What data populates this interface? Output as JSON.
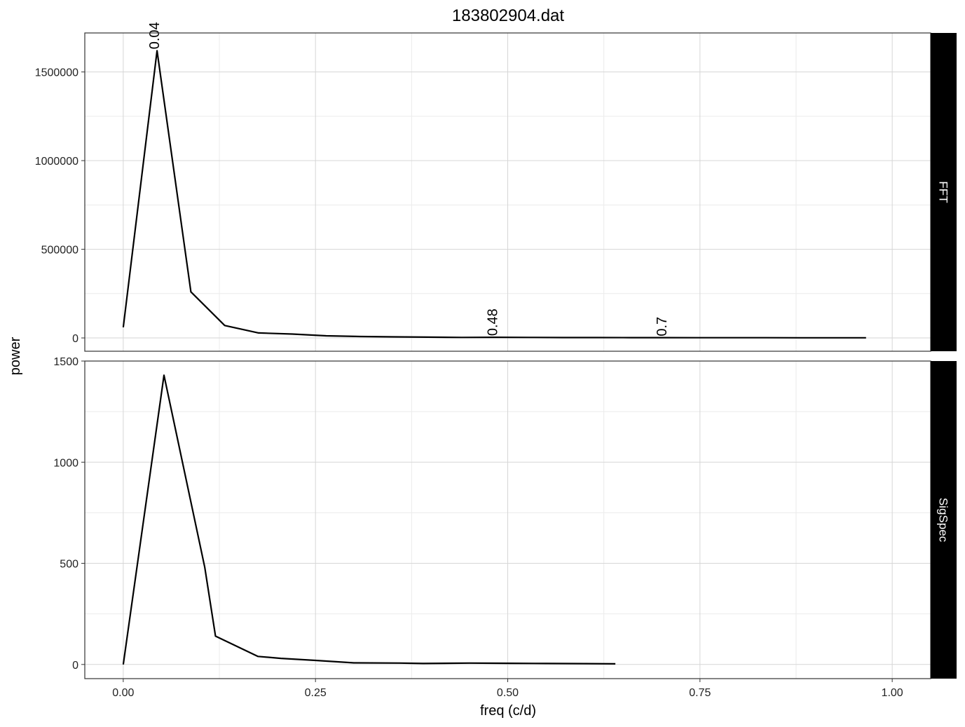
{
  "chart_data": {
    "title": "183802904.dat",
    "xlabel": "freq (c/d)",
    "ylabel": "power",
    "grid": true,
    "type": "line",
    "x_ticks": [
      0.0,
      0.25,
      0.5,
      0.75,
      1.0
    ],
    "x_tick_labels": [
      "0.00",
      "0.25",
      "0.50",
      "0.75",
      "1.00"
    ],
    "xlim": [
      -0.05,
      1.05
    ],
    "panels": [
      {
        "strip_label": "FFT",
        "ylim": [
          -75000,
          1720000
        ],
        "y_ticks": [
          0,
          500000,
          1000000,
          1500000
        ],
        "y_tick_labels": [
          "0",
          "500000",
          "1000000",
          "1500000"
        ],
        "x": [
          0.0,
          0.044,
          0.088,
          0.132,
          0.176,
          0.22,
          0.264,
          0.308,
          0.352,
          0.396,
          0.44,
          0.484,
          0.528,
          0.572,
          0.616,
          0.66,
          0.704,
          0.748,
          0.792,
          0.836,
          0.88,
          0.924,
          0.966
        ],
        "y": [
          60000,
          1620000,
          260000,
          70000,
          28000,
          22000,
          12000,
          8000,
          6000,
          4500,
          3000,
          3500,
          2800,
          2200,
          2000,
          1800,
          1600,
          1400,
          1300,
          1200,
          1100,
          1000,
          900
        ],
        "annotations": [
          {
            "x": 0.04,
            "y": 1620000,
            "text": "0.04"
          },
          {
            "x": 0.48,
            "y": 3500,
            "text": "0.48"
          },
          {
            "x": 0.7,
            "y": 1600,
            "text": "0.7"
          }
        ]
      },
      {
        "strip_label": "SigSpec",
        "ylim": [
          -70,
          1500
        ],
        "y_ticks": [
          0,
          500,
          1000,
          1500
        ],
        "y_tick_labels": [
          "0",
          "500",
          "1000",
          "1500"
        ],
        "x": [
          0.0,
          0.053,
          0.106,
          0.12,
          0.175,
          0.205,
          0.25,
          0.3,
          0.36,
          0.39,
          0.45,
          0.5,
          0.55,
          0.6,
          0.64
        ],
        "y": [
          0,
          1430,
          480,
          140,
          40,
          30,
          20,
          8,
          7,
          5,
          7,
          6,
          5,
          4,
          3
        ],
        "annotations": []
      }
    ]
  }
}
